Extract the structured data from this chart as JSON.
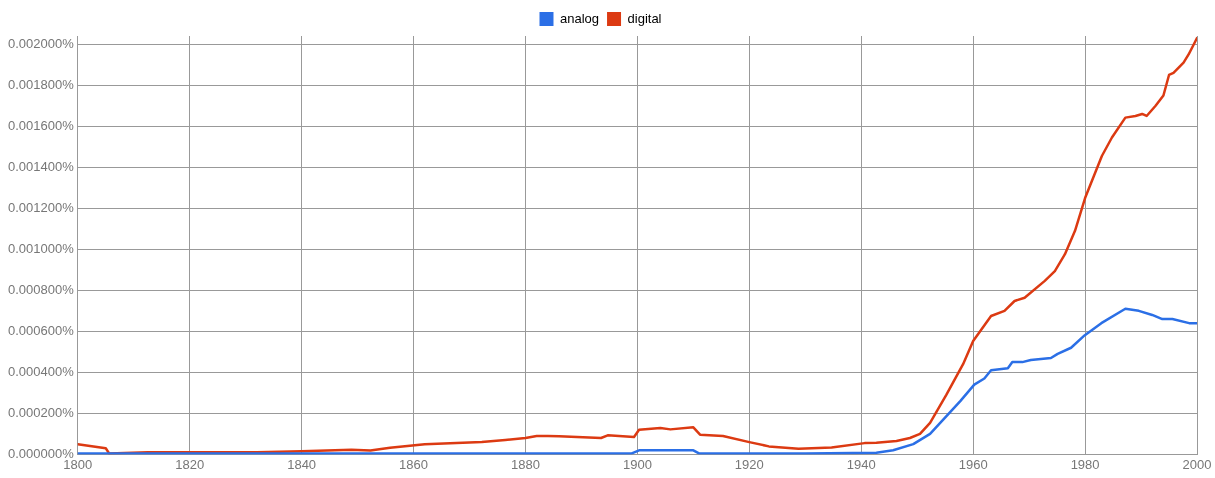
{
  "chart_data": {
    "type": "line",
    "legend": "top",
    "grid": true,
    "marker": "none",
    "line_style": "solid",
    "xlim": [
      1800,
      2000
    ],
    "xticks": [
      1800,
      1820,
      1840,
      1860,
      1880,
      1900,
      1920,
      1940,
      1960,
      1980,
      2000
    ],
    "ylim": [
      0,
      0.00204
    ],
    "yticks": [
      {
        "value": 0,
        "label": "0.000000%"
      },
      {
        "value": 0.0002,
        "label": "0.000200%"
      },
      {
        "value": 0.0004,
        "label": "0.000400%"
      },
      {
        "value": 0.0006,
        "label": "0.000600%"
      },
      {
        "value": 0.0008,
        "label": "0.000800%"
      },
      {
        "value": 0.001,
        "label": "0.001000%"
      },
      {
        "value": 0.0012,
        "label": "0.001200%"
      },
      {
        "value": 0.0014,
        "label": "0.001400%"
      },
      {
        "value": 0.0016,
        "label": "0.001600%"
      },
      {
        "value": 0.0018,
        "label": "0.001800%"
      },
      {
        "value": 0.002,
        "label": "0.002000%"
      }
    ],
    "series": [
      {
        "name": "analog",
        "color": "#2b6fe6",
        "x": [
          1800,
          1820,
          1840,
          1860,
          1880,
          1899,
          1900.3,
          1910,
          1911,
          1930,
          1942.7,
          1945.7,
          1949.3,
          1952.3,
          1957.7,
          1960.2,
          1962,
          1963.2,
          1966.2,
          1967,
          1968.8,
          1970.3,
          1973.9,
          1975.1,
          1977.5,
          1979.9,
          1982.9,
          1987.2,
          1989.6,
          1992,
          1993.8,
          1995.6,
          1998.6,
          2000
        ],
        "values": [
          5e-06,
          5e-06,
          5e-06,
          5e-06,
          5e-06,
          5e-06,
          2e-05,
          2e-05,
          5e-06,
          5e-06,
          8e-06,
          2e-05,
          5e-05,
          0.0001,
          0.00026,
          0.00034,
          0.00037,
          0.00041,
          0.00042,
          0.00045,
          0.00045,
          0.00046,
          0.00047,
          0.00049,
          0.00052,
          0.00058,
          0.00064,
          0.00071,
          0.0007,
          0.00068,
          0.00066,
          0.00066,
          0.00064,
          0.00064
        ]
      },
      {
        "name": "digital",
        "color": "#dc3a12",
        "x": [
          1800,
          1805,
          1805.6,
          1812.5,
          1822.8,
          1824,
          1832,
          1840,
          1848.9,
          1852.3,
          1855.8,
          1862,
          1872.2,
          1876.4,
          1880,
          1882,
          1884,
          1886,
          1893.5,
          1894.7,
          1899.4,
          1900.3,
          1904.1,
          1905.9,
          1910,
          1911.2,
          1915.3,
          1920,
          1923.5,
          1928.8,
          1934.7,
          1940.6,
          1942.7,
          1946.3,
          1948.7,
          1950.5,
          1952.3,
          1955.2,
          1958.2,
          1960,
          1963.2,
          1965.6,
          1967.4,
          1969.2,
          1972.8,
          1974.6,
          1976.4,
          1978.2,
          1980,
          1983,
          1984.8,
          1987.2,
          1989,
          1990.2,
          1991,
          1992.6,
          1994,
          1995,
          1995.8,
          1997.6,
          1998.5,
          2000
        ],
        "values": [
          5e-05,
          3e-05,
          5e-06,
          1e-05,
          1e-05,
          1e-05,
          1e-05,
          1.5e-05,
          2.3e-05,
          1.9e-05,
          3.2e-05,
          5e-05,
          6e-05,
          7e-05,
          8e-05,
          9e-05,
          9e-05,
          8.8e-05,
          8e-05,
          9.3e-05,
          8.5e-05,
          0.00012,
          0.000129,
          0.000122,
          0.000132,
          9.6e-05,
          9e-05,
          6e-05,
          3.9e-05,
          2.8e-05,
          3.4e-05,
          5.5e-05,
          5.7e-05,
          6.5e-05,
          8e-05,
          0.0001,
          0.000154,
          0.00029,
          0.00044,
          0.000553,
          0.000675,
          0.0007,
          0.000748,
          0.000764,
          0.000846,
          0.000894,
          0.000976,
          0.00109,
          0.00125,
          0.001455,
          0.001545,
          0.001642,
          0.00165,
          0.00166,
          0.00165,
          0.0017,
          0.00175,
          0.00185,
          0.00186,
          0.00191,
          0.00195,
          0.00203
        ]
      }
    ]
  }
}
